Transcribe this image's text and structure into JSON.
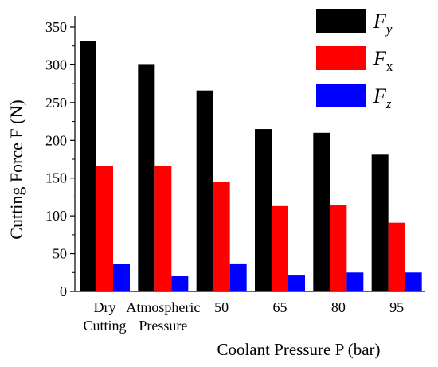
{
  "chart_data": {
    "type": "bar",
    "categories": [
      [
        "Dry",
        "Cutting"
      ],
      [
        "Atmospheric",
        "Pressure"
      ],
      [
        "50"
      ],
      [
        "65"
      ],
      [
        "80"
      ],
      [
        "95"
      ]
    ],
    "series": [
      {
        "name": "F",
        "subscript": "y",
        "color": "#000000",
        "values": [
          331,
          300,
          266,
          215,
          210,
          181
        ]
      },
      {
        "name": "F",
        "subscript": "x",
        "color": "#ff0000",
        "values": [
          166,
          166,
          145,
          113,
          114,
          91
        ]
      },
      {
        "name": "F",
        "subscript": "z",
        "color": "#0000ff",
        "values": [
          36,
          20,
          37,
          21,
          25,
          25
        ]
      }
    ],
    "xlabel": "Coolant Pressure P (bar)",
    "ylabel": "Cutting Force F (N)",
    "ylim": [
      0,
      350
    ],
    "yticks": [
      0,
      50,
      100,
      150,
      200,
      250,
      300,
      350
    ],
    "grid": false,
    "legend_position": "top-right"
  }
}
